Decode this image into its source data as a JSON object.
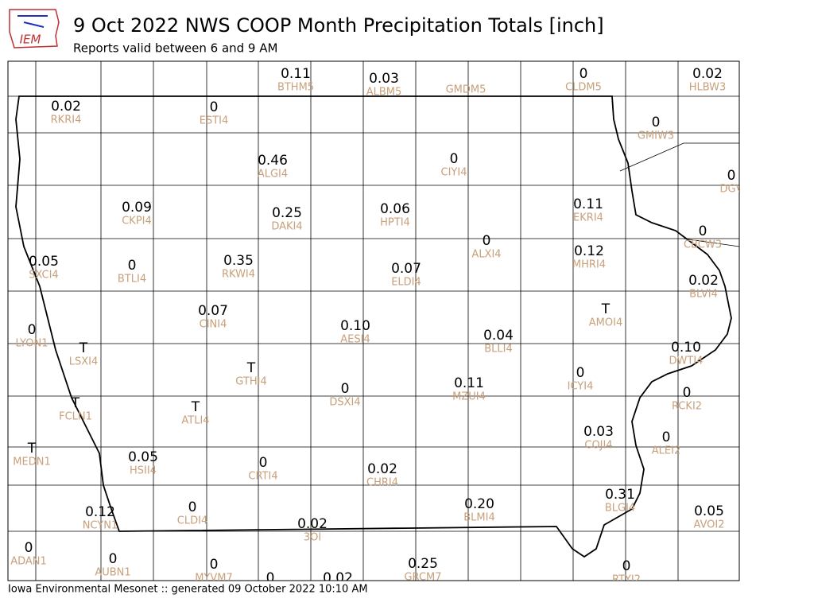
{
  "header": {
    "title": "9 Oct 2022 NWS COOP Month Precipitation Totals [inch]",
    "subtitle": "Reports valid between 6 and 9 AM",
    "logo": "IEM"
  },
  "stations": [
    {
      "value": "0.11",
      "id": "BTHM5"
    },
    {
      "value": "0.03",
      "id": "ALBM5"
    },
    {
      "id": "GMDM5"
    },
    {
      "value": "0",
      "id": "CLDM5"
    },
    {
      "value": "0.02",
      "id": "HLBW3"
    },
    {
      "value": "0.02",
      "id": "RKRI4"
    },
    {
      "value": "0",
      "id": "ESTI4"
    },
    {
      "value": "0",
      "id": "GMIW3"
    },
    {
      "value": "0.46",
      "id": "ALGI4"
    },
    {
      "value": "0",
      "id": "CIYI4"
    },
    {
      "value": "0",
      "id": "DGV"
    },
    {
      "value": "0.09",
      "id": "CKPI4"
    },
    {
      "value": "0.25",
      "id": "DAKI4"
    },
    {
      "value": "0.06",
      "id": "HPTI4"
    },
    {
      "value": "0.11",
      "id": "EKRI4"
    },
    {
      "value": "0",
      "id": "CBCW3"
    },
    {
      "value": "0",
      "id": "ALXI4"
    },
    {
      "value": "0.12",
      "id": "MHRI4"
    },
    {
      "value": "0.05",
      "id": "SXCI4"
    },
    {
      "value": "0",
      "id": "BTLI4"
    },
    {
      "value": "0.35",
      "id": "RKWI4"
    },
    {
      "value": "0.07",
      "id": "ELDI4"
    },
    {
      "value": "0.02",
      "id": "BLVI4"
    },
    {
      "value": "0.07",
      "id": "CINI4"
    },
    {
      "value": "T",
      "id": "AMOI4"
    },
    {
      "value": "0",
      "id": "LYON1"
    },
    {
      "value": "0.10",
      "id": "AESI4"
    },
    {
      "value": "0.04",
      "id": "BLLI4"
    },
    {
      "value": "0.10",
      "id": "DWTI4"
    },
    {
      "value": "T",
      "id": "LSXI4"
    },
    {
      "value": "T",
      "id": "GTHI4"
    },
    {
      "value": "0",
      "id": "ICYI4"
    },
    {
      "value": "0.11",
      "id": "MZUI4"
    },
    {
      "value": "0",
      "id": "DSXI4"
    },
    {
      "value": "0",
      "id": "RCKI2"
    },
    {
      "value": "T",
      "id": "FCLN1"
    },
    {
      "value": "T",
      "id": "ATLI4"
    },
    {
      "value": "0.03",
      "id": "COJI4"
    },
    {
      "value": "0",
      "id": "ALEI2"
    },
    {
      "value": "T",
      "id": "MEDN1"
    },
    {
      "value": "0.05",
      "id": "HSII4"
    },
    {
      "value": "0",
      "id": "CRTI4"
    },
    {
      "value": "0.02",
      "id": "CHRI4"
    },
    {
      "value": "0.20",
      "id": "BLMI4"
    },
    {
      "value": "0.31",
      "id": "BLGI4"
    },
    {
      "value": "0.12",
      "id": "NCYN1"
    },
    {
      "value": "0",
      "id": "CLDI4"
    },
    {
      "value": "0.05",
      "id": "AVOI2"
    },
    {
      "value": "0.02",
      "id": "3OI"
    },
    {
      "value": "0",
      "id": "ADAN1"
    },
    {
      "value": "0",
      "id": "AUBN1"
    },
    {
      "value": "0",
      "id": "MYVM7"
    },
    {
      "value": "0.25",
      "id": "GRCM7"
    },
    {
      "value": "0",
      "id": "RTYI2"
    },
    {
      "value": "0"
    },
    {
      "value": "0.02"
    }
  ],
  "footer": "Iowa Environmental Mesonet :: generated 09 October 2022 10:10 AM"
}
